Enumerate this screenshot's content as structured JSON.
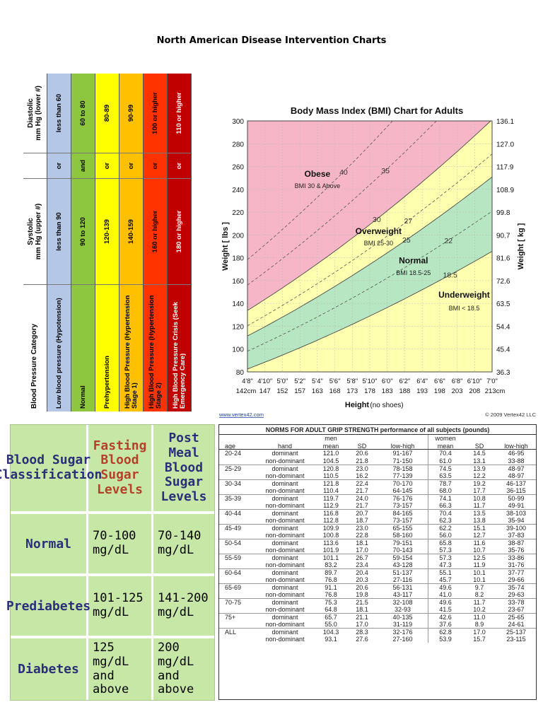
{
  "page_title": "North American Disease Intervention Charts",
  "blood_pressure": {
    "headers": {
      "category": "Blood Pressure Category",
      "systolic": "Systolic\nmm Hg (upper #)",
      "diastolic": "Diastolic\nmm Hg (lower #)"
    },
    "rows": [
      {
        "category": "Low blood pressure (Hypotension)",
        "systolic": "less than 90",
        "conj": "or",
        "diastolic": "less than 60",
        "color": "#b4c7e7"
      },
      {
        "category": "Normal",
        "systolic": "90 to 120",
        "conj": "and",
        "diastolic": "60 to 80",
        "color": "#8dc63f"
      },
      {
        "category": "Prehypertension",
        "systolic": "120-139",
        "conj": "or",
        "diastolic": "80-89",
        "color": "#ffff00"
      },
      {
        "category": "High Blood Pressure (Hypertension Stage 1)",
        "systolic": "140-159",
        "conj": "or",
        "diastolic": "90-99",
        "color": "#ffc000"
      },
      {
        "category": "High Blood Pressure (Hypertension Stage 2)",
        "systolic": "160 or higher",
        "conj": "or",
        "diastolic": "100 or higher",
        "color": "#ff3300"
      },
      {
        "category": "High Blood Pressure Crisis (Seek Emergency Care)",
        "systolic": "180 or higher",
        "conj": "or",
        "diastolic": "110 or higher",
        "color": "#c00000"
      }
    ]
  },
  "chart_data": {
    "type": "area",
    "title": "Body Mass Index (BMI) Chart for Adults",
    "xlabel": "Height",
    "xlabel_suffix": "(no shoes)",
    "ylabel": "Weight [ lbs ]",
    "ylabel_right": "Weight [ kg ]",
    "ylim": [
      80,
      300
    ],
    "y_ticks": [
      80,
      100,
      120,
      140,
      160,
      180,
      200,
      220,
      240,
      260,
      280,
      300
    ],
    "y_ticks_kg": [
      "36.3",
      "45.4",
      "54.4",
      "63.5",
      "72.6",
      "81.6",
      "90.7",
      "99.8",
      "108.9",
      "117.9",
      "127.0",
      "136.1"
    ],
    "x_inches": [
      56,
      58,
      60,
      62,
      64,
      66,
      68,
      70,
      72,
      74,
      76,
      78,
      80,
      82,
      84
    ],
    "x_labels_ft": [
      "4'8\"",
      "4'10\"",
      "5'0\"",
      "5'2\"",
      "5'4\"",
      "5'6\"",
      "5'8\"",
      "5'10\"",
      "6'0\"",
      "6'2\"",
      "6'4\"",
      "6'6\"",
      "6'8\"",
      "6'10\"",
      "7'0\""
    ],
    "x_labels_cm": [
      "142cm",
      "147",
      "152",
      "157",
      "163",
      "168",
      "173",
      "178",
      "183",
      "188",
      "193",
      "198",
      "203",
      "208",
      "213cm"
    ],
    "regions": [
      {
        "name": "Obese",
        "sub": "BMI 30 & Above",
        "color": "#f7b6c8"
      },
      {
        "name": "Overweight",
        "sub": "BMI 25-30",
        "color": "#ffffb0"
      },
      {
        "name": "Normal",
        "sub": "BMI 18.5-25",
        "color": "#b7e6c2"
      },
      {
        "name": "Underweight",
        "sub": "BMI < 18.5",
        "color": "#ffffb0"
      }
    ],
    "bmi_lines": [
      {
        "bmi": 40,
        "label": "40",
        "style": "dashed"
      },
      {
        "bmi": 35,
        "label": "35",
        "style": "dashed"
      },
      {
        "bmi": 30,
        "label": "30",
        "style": "solid"
      },
      {
        "bmi": 27,
        "label": "27",
        "style": "dashed"
      },
      {
        "bmi": 25,
        "label": "25",
        "style": "solid"
      },
      {
        "bmi": 22,
        "label": "22",
        "style": "dashed"
      },
      {
        "bmi": 18.5,
        "label": "18.5",
        "style": "solid"
      }
    ],
    "source_left": "www.vertex42.com",
    "source_right": "© 2009 Vertex42 LLC"
  },
  "blood_sugar": {
    "headers": [
      "Blood Sugar Classification",
      "Fasting Blood Sugar Levels",
      "Post Meal Blood Sugar Levels"
    ],
    "rows": [
      {
        "label": "Normal",
        "fasting": "70-100 mg/dL",
        "post": "70-140 mg/dL"
      },
      {
        "label": "Prediabetes",
        "fasting": "101-125 mg/dL",
        "post": "141-200 mg/dL"
      },
      {
        "label": "Diabetes",
        "fasting": "125 mg/dL and above",
        "post": "200 mg/dL and above"
      }
    ]
  },
  "grip_strength": {
    "title": "NORMS FOR ADULT GRIP STRENGTH performance of all subjects (pounds)",
    "group_men": "men",
    "group_women": "women",
    "columns": [
      "age",
      "hand",
      "mean",
      "SD",
      "low-high",
      "mean",
      "SD",
      "low-high"
    ],
    "rows": [
      [
        "20-24",
        "dominant",
        "121.0",
        "20.6",
        "91-167",
        "70.4",
        "14.5",
        "46-95"
      ],
      [
        "",
        "non-dominant",
        "104.5",
        "21.8",
        "71-150",
        "61.0",
        "13.1",
        "33-88"
      ],
      [
        "25-29",
        "dominant",
        "120.8",
        "23.0",
        "78-158",
        "74.5",
        "13.9",
        "48-97"
      ],
      [
        "",
        "non-dominant",
        "110.5",
        "16.2",
        "77-139",
        "63.5",
        "12.2",
        "48-97"
      ],
      [
        "30-34",
        "dominant",
        "121.8",
        "22.4",
        "70-170",
        "78.7",
        "19.2",
        "46-137"
      ],
      [
        "",
        "non-dominant",
        "110.4",
        "21.7",
        "64-145",
        "68.0",
        "17.7",
        "36-115"
      ],
      [
        "35-39",
        "dominant",
        "119.7",
        "24.0",
        "76-176",
        "74.1",
        "10.8",
        "50-99"
      ],
      [
        "",
        "non-dominant",
        "112.9",
        "21.7",
        "73-157",
        "66.3",
        "11.7",
        "49-91"
      ],
      [
        "40-44",
        "dominant",
        "116.8",
        "20.7",
        "84-165",
        "70.4",
        "13.5",
        "38-103"
      ],
      [
        "",
        "non-dominant",
        "112.8",
        "18.7",
        "73-157",
        "62.3",
        "13.8",
        "35-94"
      ],
      [
        "45-49",
        "dominant",
        "109.9",
        "23.0",
        "65-155",
        "62.2",
        "15.1",
        "39-100"
      ],
      [
        "",
        "non-dominant",
        "100.8",
        "22.8",
        "58-160",
        "56.0",
        "12.7",
        "37-83"
      ],
      [
        "50-54",
        "dominant",
        "113.6",
        "18.1",
        "79-151",
        "65.8",
        "11.6",
        "38-87"
      ],
      [
        "",
        "non-dominant",
        "101.9",
        "17.0",
        "70-143",
        "57.3",
        "10.7",
        "35-76"
      ],
      [
        "55-59",
        "dominant",
        "101.1",
        "26.7",
        "59-154",
        "57.3",
        "12.5",
        "33-86"
      ],
      [
        "",
        "non-dominant",
        "83.2",
        "23.4",
        "43-128",
        "47.3",
        "11.9",
        "31-76"
      ],
      [
        "60-64",
        "dominant",
        "89.7",
        "20.4",
        "51-137",
        "55.1",
        "10.1",
        "37-77"
      ],
      [
        "",
        "non-dominant",
        "76.8",
        "20.3",
        "27-116",
        "45.7",
        "10.1",
        "29-66"
      ],
      [
        "65-69",
        "dominant",
        "91.1",
        "20.6",
        "56-131",
        "49.6",
        "9.7",
        "35-74"
      ],
      [
        "",
        "non-dominant",
        "76.8",
        "19.8",
        "43-117",
        "41.0",
        "8.2",
        "29-63"
      ],
      [
        "70-75",
        "dominant",
        "75.3",
        "21.5",
        "32-108",
        "49.6",
        "11.7",
        "33-78"
      ],
      [
        "",
        "non-dominant",
        "64.8",
        "18.1",
        "32-93",
        "41.5",
        "10.2",
        "23-67"
      ],
      [
        "75+",
        "dominant",
        "65.7",
        "21.1",
        "40-135",
        "42.6",
        "11.0",
        "25-65"
      ],
      [
        "",
        "non-dominant",
        "55.0",
        "17.0",
        "31-119",
        "37.6",
        "8.9",
        "24-61"
      ],
      [
        "ALL",
        "dominant",
        "104.3",
        "28.3",
        "32-176",
        "62.8",
        "17.0",
        "25-137"
      ],
      [
        "",
        "non-dominant",
        "93.1",
        "27.6",
        "27-160",
        "53.9",
        "15.7",
        "23-115"
      ]
    ]
  }
}
